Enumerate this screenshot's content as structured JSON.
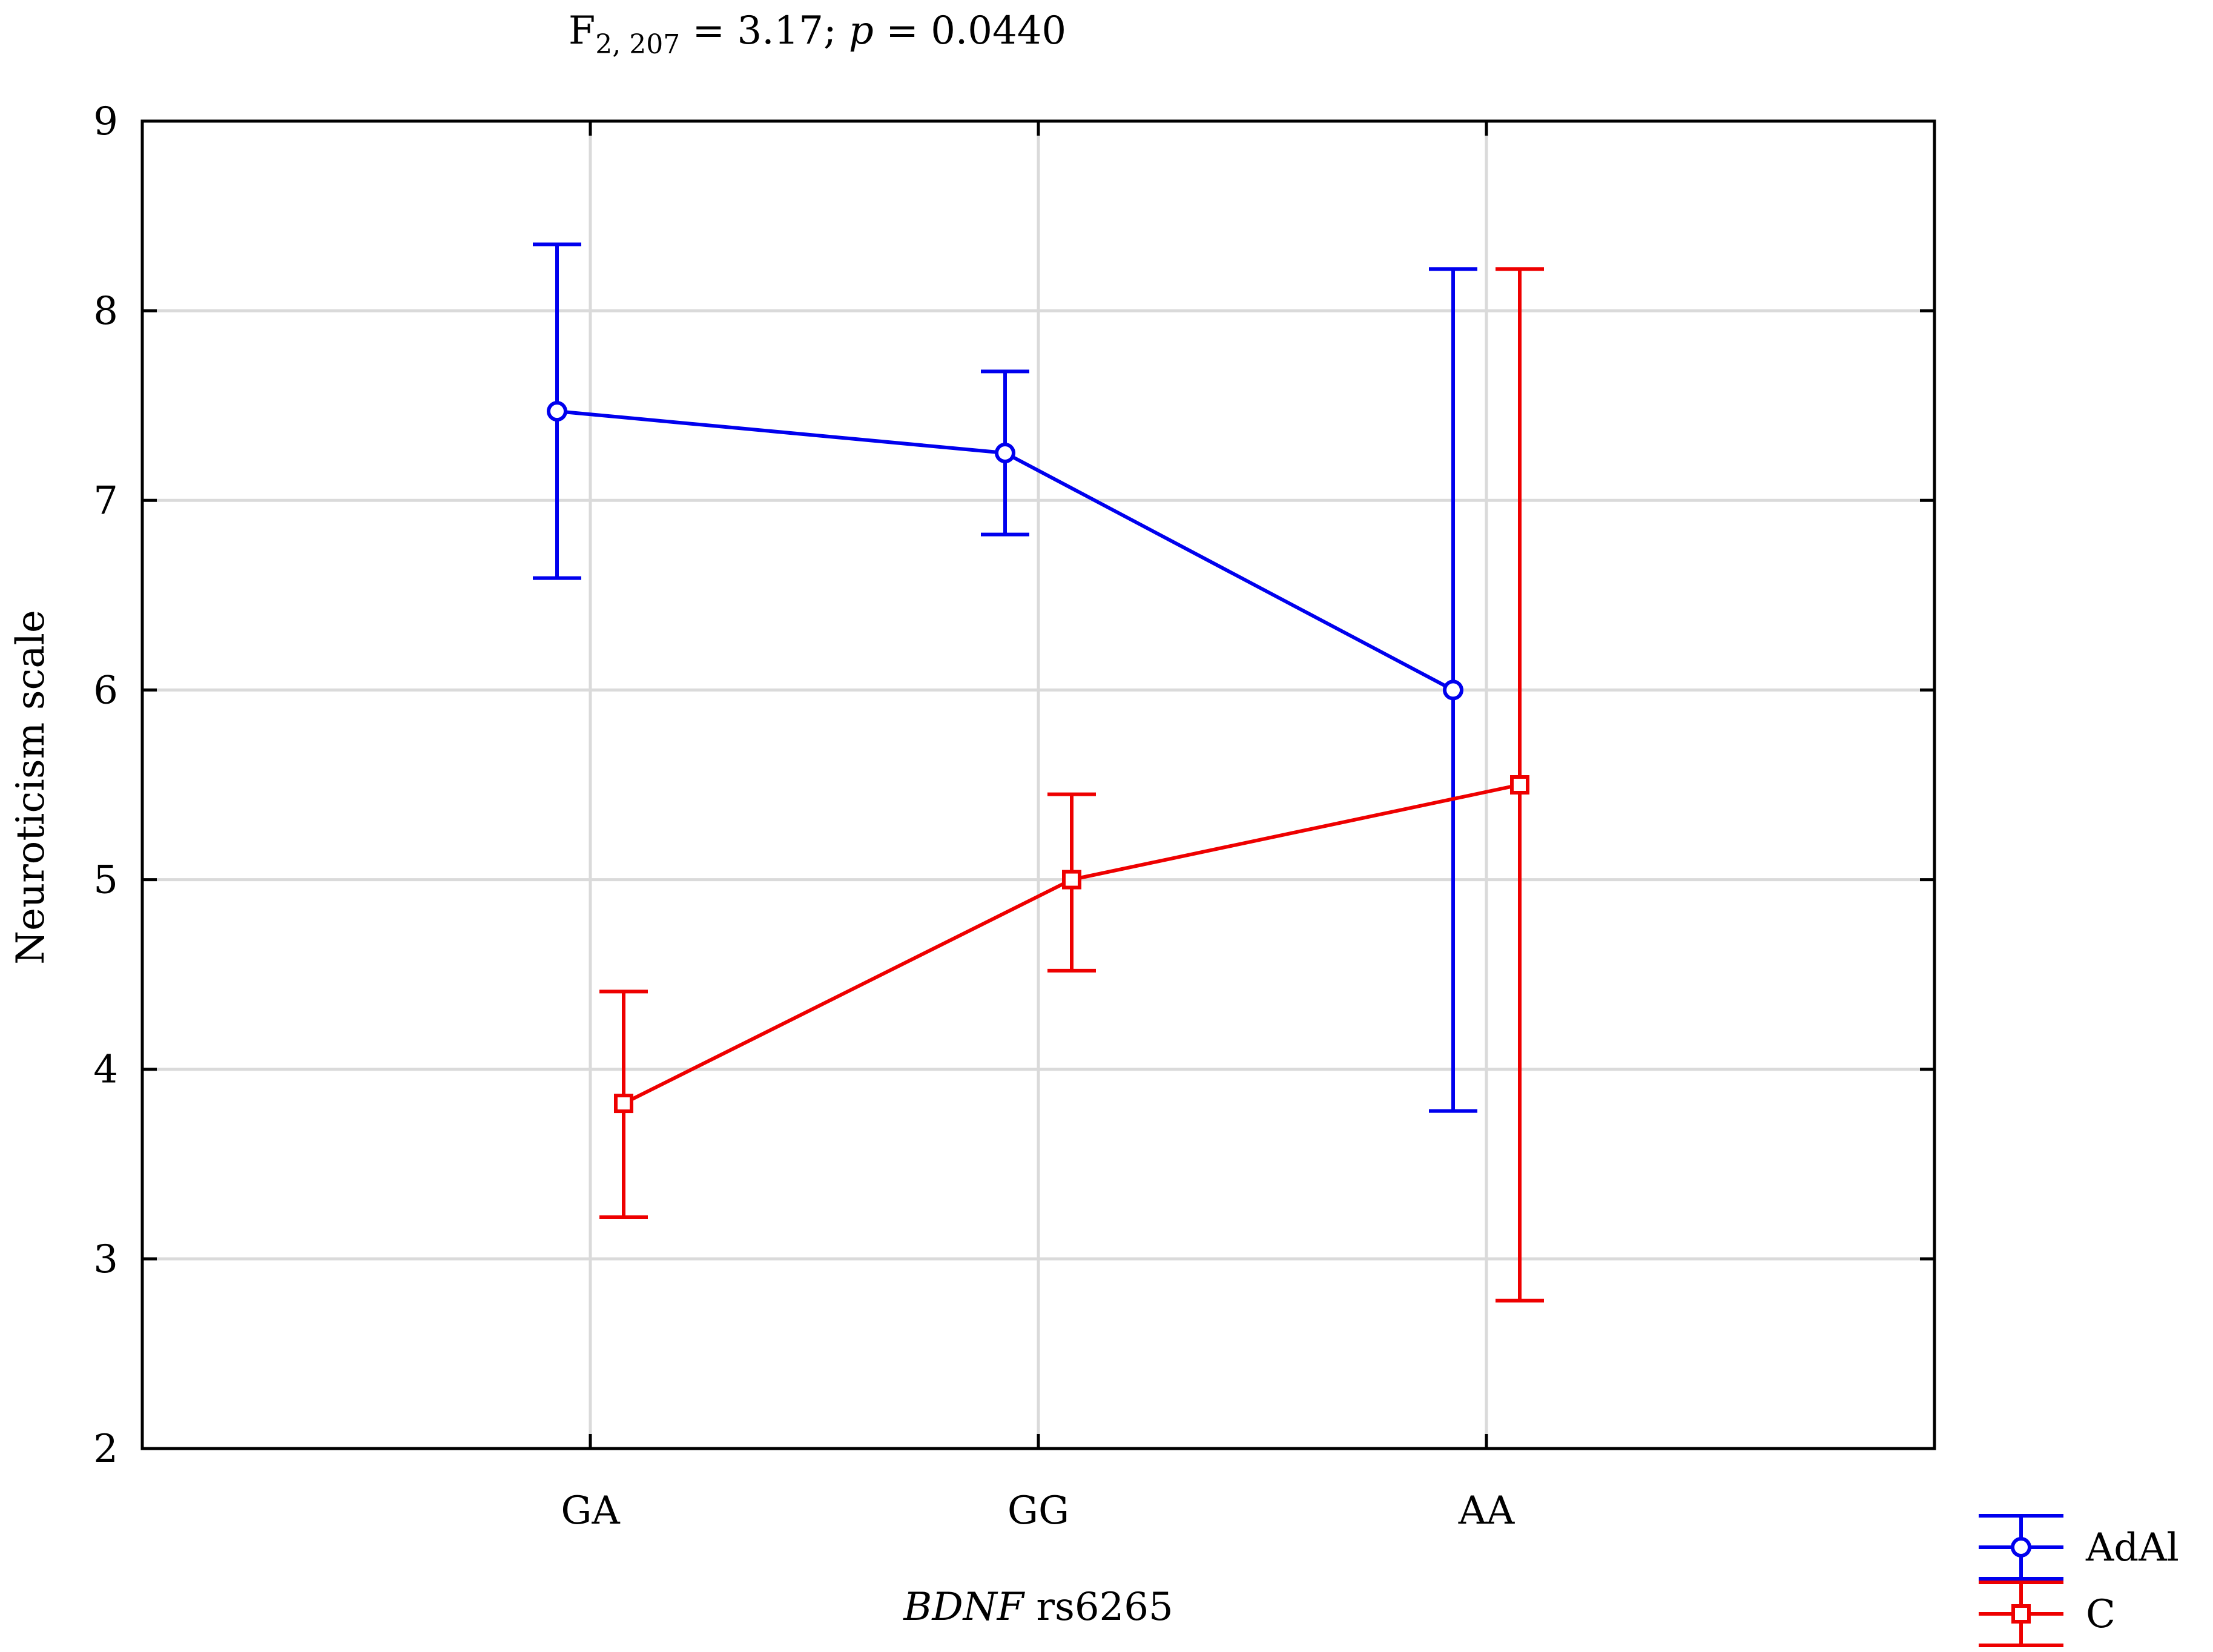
{
  "chart_data": {
    "type": "line",
    "title_parts": {
      "f": "F",
      "subscript": "2, 207",
      "stat_text": " = 3.17; ",
      "p": "p",
      "p_text": " = 0.0440"
    },
    "xlabel_parts": {
      "italic": "BDNF",
      "rest": " rs6265"
    },
    "ylabel": "Neuroticism scale",
    "categories": [
      "GA",
      "GG",
      "AA"
    ],
    "ylim": [
      2,
      9
    ],
    "yticks": [
      "2",
      "3",
      "4",
      "5",
      "6",
      "7",
      "8",
      "9"
    ],
    "grid": true,
    "legend_position": "bottom-right-outside",
    "series": [
      {
        "name": "AdAl",
        "color": "#0000ee",
        "marker": "circle",
        "values": [
          7.47,
          7.25,
          6.0
        ],
        "lower": [
          6.59,
          6.82,
          3.78
        ],
        "upper": [
          8.35,
          7.68,
          8.22
        ]
      },
      {
        "name": "C",
        "color": "#ee0000",
        "marker": "square",
        "values": [
          3.82,
          5.0,
          5.5
        ],
        "lower": [
          3.22,
          4.52,
          2.78
        ],
        "upper": [
          4.41,
          5.45,
          8.22
        ]
      }
    ]
  }
}
